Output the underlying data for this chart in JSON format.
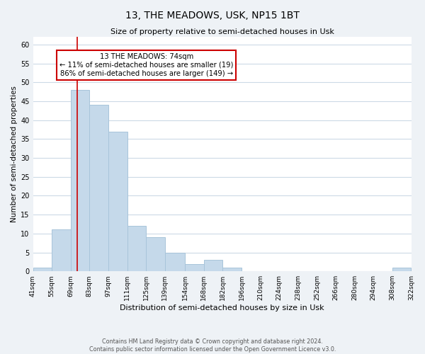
{
  "title": "13, THE MEADOWS, USK, NP15 1BT",
  "subtitle": "Size of property relative to semi-detached houses in Usk",
  "bar_color": "#c5d9ea",
  "bar_edge_color": "#a8c4da",
  "vline_x": 74,
  "vline_color": "#cc0000",
  "annotation_title": "13 THE MEADOWS: 74sqm",
  "annotation_line1": "← 11% of semi-detached houses are smaller (19)",
  "annotation_line2": "86% of semi-detached houses are larger (149) →",
  "xlabel": "Distribution of semi-detached houses by size in Usk",
  "ylabel": "Number of semi-detached properties",
  "footer1": "Contains HM Land Registry data © Crown copyright and database right 2024.",
  "footer2": "Contains public sector information licensed under the Open Government Licence v3.0.",
  "ylim": [
    0,
    62
  ],
  "yticks": [
    0,
    5,
    10,
    15,
    20,
    25,
    30,
    35,
    40,
    45,
    50,
    55,
    60
  ],
  "bin_edges": [
    41,
    55,
    69,
    83,
    97,
    111,
    125,
    139,
    154,
    168,
    182,
    196,
    210,
    224,
    238,
    252,
    266,
    280,
    294,
    308,
    322
  ],
  "bin_counts": [
    1,
    11,
    48,
    44,
    37,
    12,
    9,
    5,
    2,
    3,
    1,
    0,
    0,
    0,
    0,
    0,
    0,
    0,
    0,
    1
  ],
  "tick_labels": [
    "41sqm",
    "55sqm",
    "69sqm",
    "83sqm",
    "97sqm",
    "111sqm",
    "125sqm",
    "139sqm",
    "154sqm",
    "168sqm",
    "182sqm",
    "196sqm",
    "210sqm",
    "224sqm",
    "238sqm",
    "252sqm",
    "266sqm",
    "280sqm",
    "294sqm",
    "308sqm",
    "322sqm"
  ],
  "background_color": "#eef2f6",
  "plot_bg_color": "#ffffff",
  "grid_color": "#ccdae6"
}
